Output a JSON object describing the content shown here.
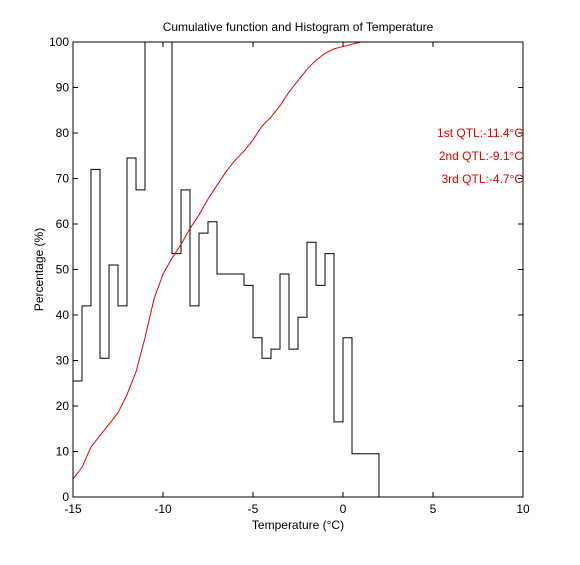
{
  "chart_data": {
    "type": "line",
    "title": "Cumulative function and Histogram of Temperature",
    "xlabel": "Temperature (°C)",
    "ylabel": "Percentage (%)",
    "xlim": [
      -15,
      10
    ],
    "ylim": [
      0,
      100
    ],
    "xticks": [
      -15,
      -10,
      -5,
      0,
      5,
      10
    ],
    "yticks": [
      0,
      10,
      20,
      30,
      40,
      50,
      60,
      70,
      80,
      90,
      100
    ],
    "grid": false,
    "colors": {
      "cumulative": "#e00000",
      "histogram": "#000000",
      "annotation": "#e00000"
    },
    "series": [
      {
        "style": "steps",
        "color": "#000000",
        "edges": [
          -15,
          -14.5,
          -14,
          -13.5,
          -13,
          -12.5,
          -12,
          -11.5,
          -11,
          -10.5,
          -10,
          -9.5,
          -9,
          -8.5,
          -8,
          -7.5,
          -7,
          -6.5,
          -6,
          -5.5,
          -5,
          -4.5,
          -4,
          -3.5,
          -3,
          -2.5,
          -2,
          -1.5,
          -1,
          -0.5,
          0,
          0.5,
          1,
          1.5,
          2
        ],
        "values": [
          25.5,
          42,
          72,
          30.5,
          51,
          42,
          74.5,
          67.5,
          100,
          100,
          100,
          53.5,
          67.5,
          42,
          58,
          60.5,
          49,
          49,
          49,
          46.5,
          35,
          30.5,
          32.5,
          49,
          32.5,
          39.5,
          56,
          46.5,
          53.5,
          16.5,
          35,
          9.5,
          9.5,
          9.5
        ]
      },
      {
        "style": "line",
        "color": "#e00000",
        "x": [
          -15,
          -14.5,
          -14,
          -13.5,
          -13,
          -12.5,
          -12,
          -11.5,
          -11,
          -10.5,
          -10,
          -9.5,
          -9,
          -8.5,
          -8,
          -7.5,
          -7,
          -6.5,
          -6,
          -5.5,
          -5,
          -4.5,
          -4,
          -3.5,
          -3,
          -2.5,
          -2,
          -1.5,
          -1,
          -0.5,
          0,
          0.5,
          1,
          1.5,
          2,
          10
        ],
        "y": [
          4,
          6.5,
          11,
          13.5,
          16,
          18.5,
          22.5,
          27.5,
          35,
          43.5,
          49,
          52.5,
          55.5,
          59,
          62,
          65.5,
          68.5,
          71.5,
          74,
          76,
          78.5,
          81.5,
          83.5,
          86,
          89,
          91.5,
          94,
          96,
          97.5,
          98.5,
          99,
          99.5,
          100,
          100,
          100,
          100
        ]
      }
    ],
    "annotations": [
      "1st QTL:-11.4°C",
      "2nd QTL:-9.1°C",
      "3rd QTL:-4.7°C"
    ]
  }
}
